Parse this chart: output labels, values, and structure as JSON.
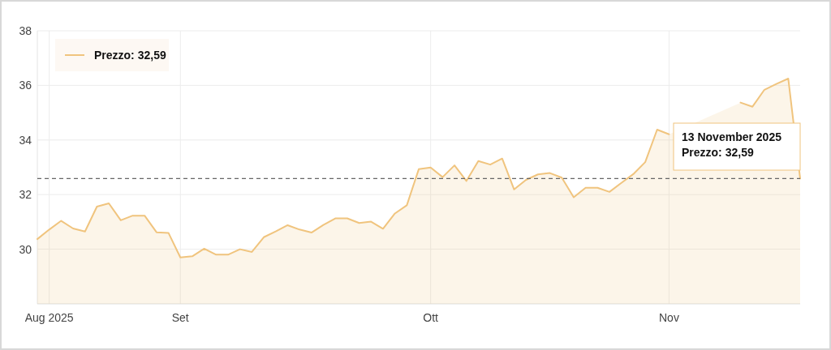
{
  "chart_data": {
    "type": "area",
    "categories": [
      null,
      "Aug 2025",
      null,
      null,
      null,
      null,
      null,
      null,
      null,
      null,
      null,
      null,
      "Set",
      null,
      null,
      null,
      null,
      null,
      null,
      null,
      null,
      null,
      null,
      null,
      null,
      null,
      null,
      null,
      null,
      null,
      null,
      null,
      null,
      "Ott",
      null,
      null,
      null,
      null,
      null,
      null,
      null,
      null,
      null,
      null,
      null,
      null,
      null,
      null,
      null,
      null,
      null,
      null,
      null,
      "Nov",
      null,
      null,
      null,
      null,
      null,
      null,
      null,
      null,
      null,
      null,
      null
    ],
    "series": [
      {
        "name": "Prezzo: 32,59",
        "color": "#f0c47e",
        "values": [
          30.37,
          30.72,
          31.04,
          30.76,
          30.65,
          31.56,
          31.68,
          31.06,
          31.23,
          31.23,
          30.62,
          30.6,
          29.7,
          29.74,
          30.02,
          29.8,
          29.8,
          30.0,
          29.9,
          30.44,
          30.65,
          30.88,
          30.72,
          30.61,
          30.89,
          31.13,
          31.13,
          30.96,
          31.01,
          30.75,
          31.31,
          31.61,
          32.93,
          32.99,
          32.64,
          33.07,
          32.5,
          33.23,
          33.1,
          33.32,
          32.19,
          32.54,
          32.74,
          32.79,
          32.62,
          31.9,
          32.25,
          32.25,
          32.1,
          32.43,
          32.75,
          33.19,
          34.38,
          34.21,
          null,
          null,
          null,
          null,
          null,
          35.37,
          35.22,
          35.84,
          36.05,
          36.25,
          32.59
        ]
      }
    ],
    "ylim": [
      28,
      38
    ],
    "yticks": [
      30,
      32,
      34,
      36,
      38
    ],
    "grid": true,
    "legend": "top left",
    "ref_lines": [
      {
        "axis": "y",
        "value": 32.59,
        "color": "#666666",
        "line_style": "dashed"
      }
    ],
    "annotations": [
      "13 November 2025\nPrezzo: 32,59"
    ]
  }
}
